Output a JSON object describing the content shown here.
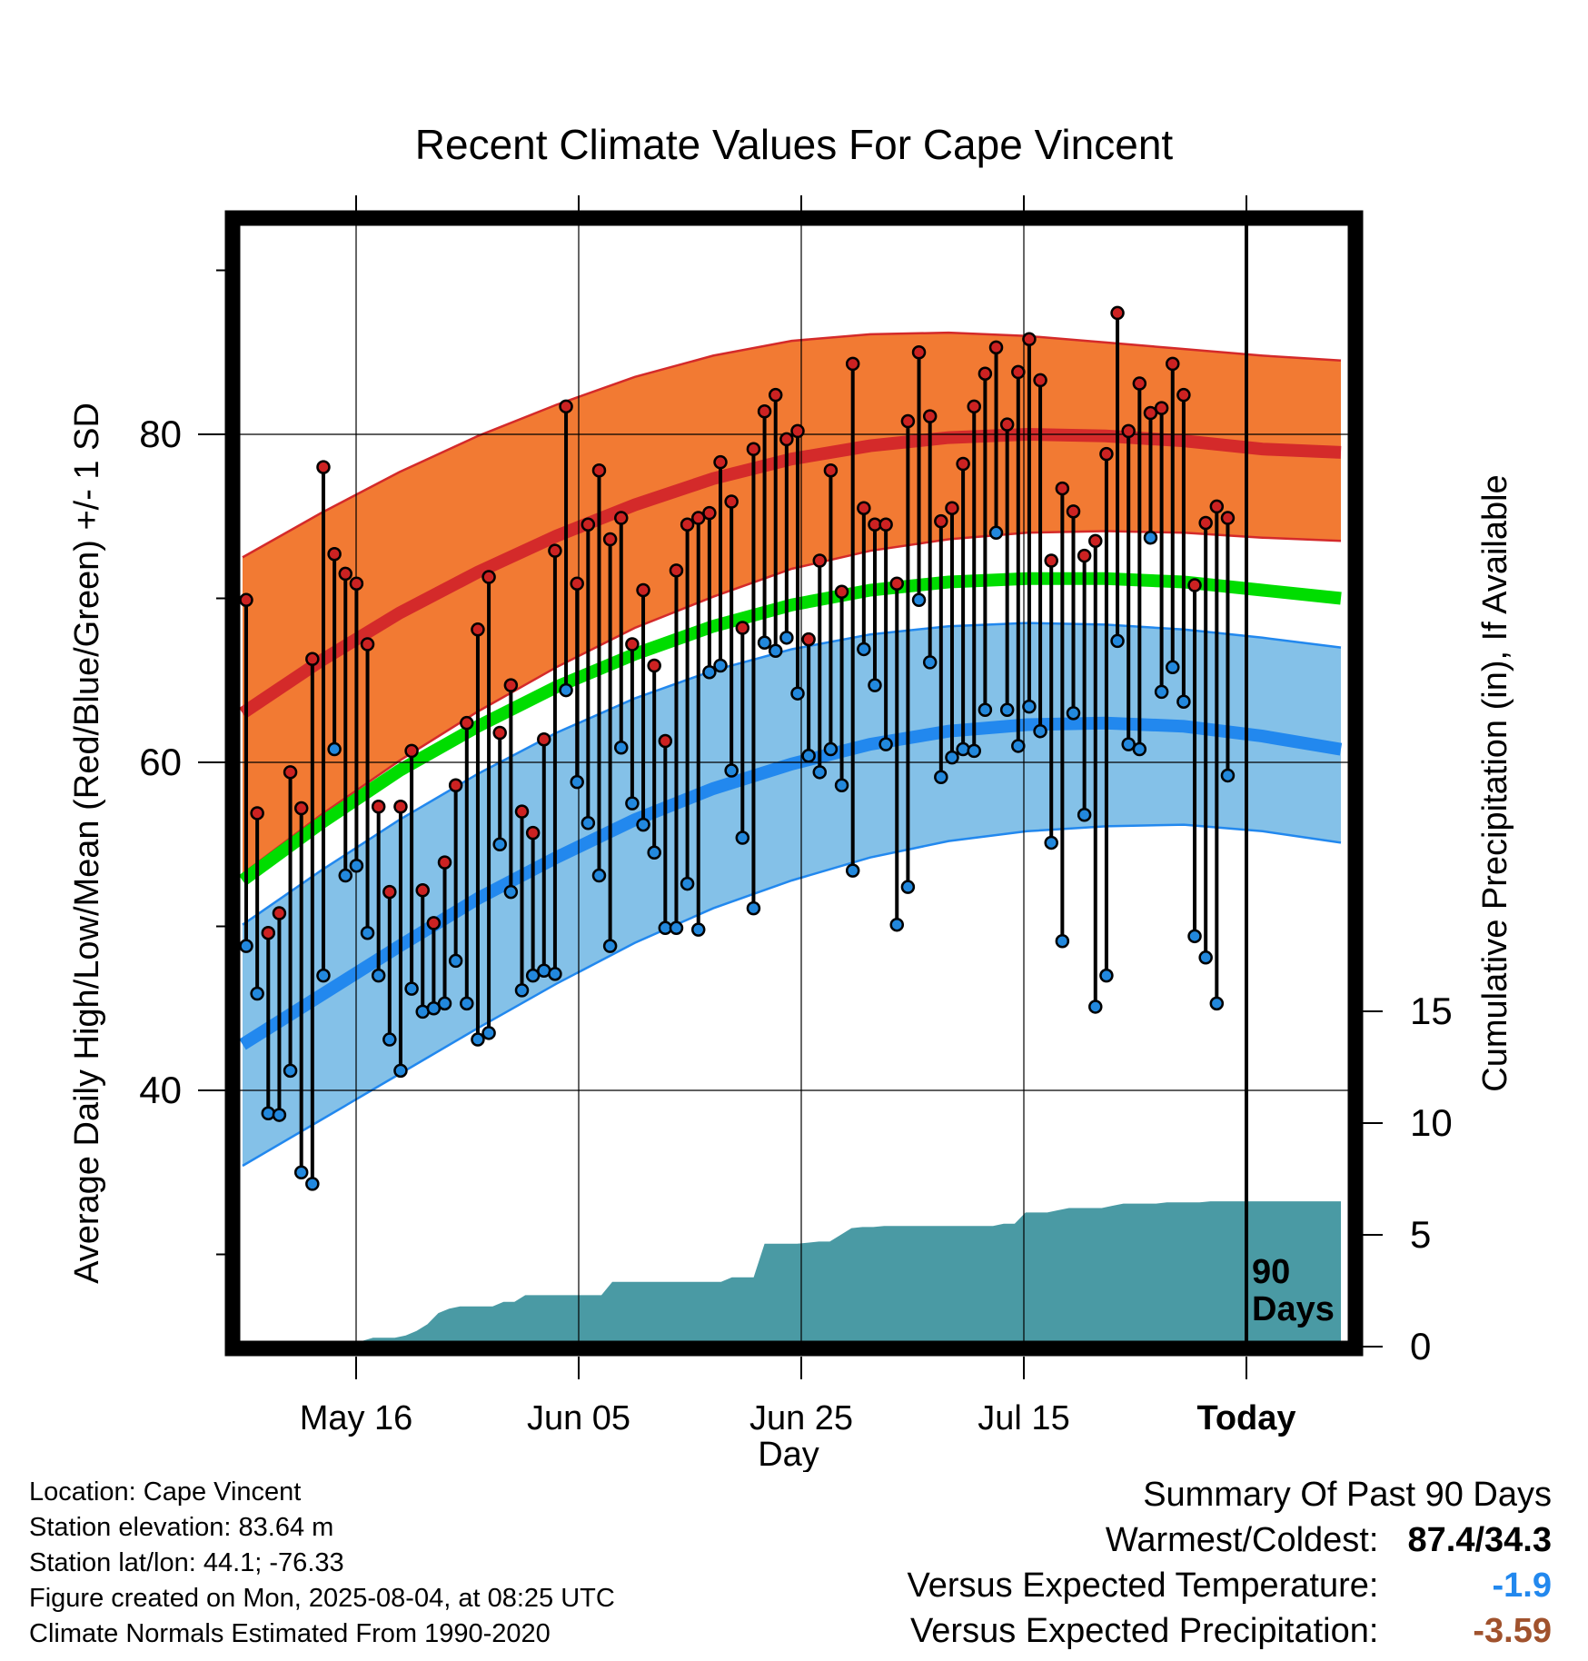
{
  "chart_data": {
    "type": "line",
    "title": "Recent Climate Values For Cape Vincent",
    "xlabel": "Day",
    "ylabel": "Average Daily High/Low/Mean (Red/Blue/Green) +/- 1 SD",
    "y2label": "Cumulative Precipitation (in), If Available",
    "xlim_days": [
      -102,
      9
    ],
    "ylim": [
      24,
      93
    ],
    "y2lim": [
      0,
      43
    ],
    "x_ticks": [
      {
        "day": -80,
        "label": "May 16"
      },
      {
        "day": -60,
        "label": "Jun 05"
      },
      {
        "day": -40,
        "label": "Jun 25"
      },
      {
        "day": -20,
        "label": "Jul 15"
      },
      {
        "day": 0,
        "label": "Today"
      }
    ],
    "y_ticks": [
      40,
      60,
      80
    ],
    "y2_ticks": [
      0,
      5,
      10,
      15
    ],
    "grid": true,
    "today_annotation": "90\nDays",
    "series": [
      {
        "name": "Daily High",
        "color": "#cc2222",
        "values": [
          69.9,
          56.9,
          49.6,
          50.8,
          59.4,
          57.2,
          66.3,
          78.0,
          72.7,
          71.5,
          70.9,
          67.2,
          57.3,
          52.1,
          57.3,
          60.7,
          52.2,
          50.2,
          53.9,
          58.6,
          62.4,
          68.1,
          71.3,
          61.8,
          64.7,
          57.0,
          55.7,
          61.4,
          72.9,
          81.7,
          70.9,
          74.5,
          77.8,
          73.6,
          74.9,
          67.2,
          70.5,
          65.9,
          61.3,
          71.7,
          74.5,
          74.9,
          75.2,
          78.3,
          75.9,
          68.2,
          79.1,
          81.4,
          82.4,
          79.7,
          80.2,
          67.5,
          72.3,
          77.8,
          70.4,
          84.3,
          75.5,
          74.5,
          74.5,
          70.9,
          80.8,
          85.0,
          81.1,
          74.7,
          75.5,
          78.2,
          81.7,
          83.7,
          85.3,
          80.6,
          83.8,
          85.8,
          83.3,
          72.3,
          76.7,
          75.3,
          72.6,
          73.5,
          78.8,
          87.4,
          80.2,
          83.1,
          81.3,
          81.6,
          84.3,
          82.4,
          70.8,
          74.6,
          75.6,
          74.9
        ]
      },
      {
        "name": "Daily Low",
        "color": "#2288dd",
        "values": [
          48.8,
          45.9,
          38.6,
          38.5,
          41.2,
          35.0,
          34.3,
          47.0,
          60.8,
          53.1,
          53.7,
          49.6,
          47.0,
          43.1,
          41.2,
          46.2,
          44.8,
          45.0,
          45.3,
          47.9,
          45.3,
          43.1,
          43.5,
          55.0,
          52.1,
          46.1,
          47.0,
          47.3,
          47.1,
          64.4,
          58.8,
          56.3,
          53.1,
          48.8,
          60.9,
          57.5,
          56.2,
          54.5,
          49.9,
          49.9,
          52.6,
          49.8,
          65.5,
          65.9,
          59.5,
          55.4,
          51.1,
          67.3,
          66.8,
          67.6,
          64.2,
          60.4,
          59.4,
          60.8,
          58.6,
          53.4,
          66.9,
          64.7,
          61.1,
          50.1,
          52.4,
          69.9,
          66.1,
          59.1,
          60.3,
          60.8,
          60.7,
          63.2,
          74.0,
          63.2,
          61.0,
          63.4,
          61.9,
          55.1,
          49.1,
          63.0,
          56.8,
          45.1,
          47.0,
          67.4,
          61.1,
          60.8,
          73.7,
          64.3,
          65.8,
          63.7,
          49.4,
          48.1,
          45.3,
          59.2
        ]
      },
      {
        "name": "Normal High",
        "color": "#d42a2a",
        "values": [
          63.0,
          66.2,
          69.1,
          71.6,
          73.8,
          75.7,
          77.3,
          78.5,
          79.3,
          79.8,
          80.0,
          79.9,
          79.6,
          79.1,
          78.9
        ]
      },
      {
        "name": "Normal High +1 SD",
        "color": "#f27a33",
        "values": [
          72.5,
          75.2,
          77.7,
          79.9,
          81.8,
          83.5,
          84.8,
          85.7,
          86.1,
          86.2,
          86.0,
          85.6,
          85.2,
          84.8,
          84.5
        ]
      },
      {
        "name": "Normal High -1 SD",
        "color": "#f27a33",
        "values": [
          53.2,
          56.8,
          60.1,
          63.1,
          65.8,
          68.2,
          70.1,
          71.8,
          72.9,
          73.6,
          74.0,
          74.1,
          74.0,
          73.7,
          73.5
        ]
      },
      {
        "name": "Normal Mean",
        "color": "#00dd00",
        "values": [
          52.8,
          56.3,
          59.5,
          62.2,
          64.6,
          66.6,
          68.3,
          69.6,
          70.5,
          71.0,
          71.2,
          71.2,
          71.0,
          70.5,
          70.0
        ]
      },
      {
        "name": "Normal Low",
        "color": "#2288ee",
        "values": [
          42.8,
          45.8,
          48.8,
          51.7,
          54.2,
          56.5,
          58.4,
          59.9,
          61.1,
          61.9,
          62.3,
          62.4,
          62.2,
          61.6,
          60.8
        ]
      },
      {
        "name": "Normal Low +1 SD",
        "color": "#2288ee",
        "values": [
          50.1,
          53.4,
          56.5,
          59.3,
          61.8,
          63.9,
          65.6,
          66.9,
          67.8,
          68.3,
          68.5,
          68.4,
          68.1,
          67.6,
          67.0
        ]
      },
      {
        "name": "Normal Low -1 SD",
        "color": "#2288ee",
        "values": [
          35.4,
          38.2,
          41.0,
          43.8,
          46.5,
          49.0,
          51.1,
          52.8,
          54.2,
          55.2,
          55.8,
          56.1,
          56.2,
          55.8,
          55.1
        ]
      },
      {
        "name": "Cumulative Precipitation",
        "color": "#4a9aa4",
        "values": [
          0.0,
          0.0,
          0.0,
          0.0,
          0.0,
          0.0,
          0.0,
          0.0,
          0.0,
          0.0,
          0.0,
          0.25,
          0.4,
          0.4,
          0.4,
          0.5,
          0.7,
          1.0,
          1.5,
          1.7,
          1.8,
          1.8,
          1.8,
          1.8,
          2.0,
          2.0,
          2.3,
          2.3,
          2.3,
          2.3,
          2.3,
          2.3,
          2.3,
          2.3,
          2.9,
          2.9,
          2.9,
          2.9,
          2.9,
          2.9,
          2.9,
          2.9,
          2.9,
          2.9,
          2.9,
          3.1,
          3.1,
          3.1,
          4.6,
          4.6,
          4.6,
          4.6,
          4.65,
          4.7,
          4.7,
          5.0,
          5.3,
          5.35,
          5.35,
          5.4,
          5.4,
          5.4,
          5.4,
          5.4,
          5.4,
          5.4,
          5.4,
          5.4,
          5.4,
          5.4,
          5.5,
          5.5,
          6.0,
          6.0,
          6.0,
          6.1,
          6.2,
          6.2,
          6.2,
          6.2,
          6.3,
          6.4,
          6.4,
          6.4,
          6.4,
          6.45,
          6.45,
          6.45,
          6.45,
          6.5,
          6.5,
          6.5,
          6.5,
          6.5,
          6.5,
          6.5,
          6.5,
          6.5,
          6.5,
          6.5,
          6.5,
          6.5
        ]
      }
    ]
  },
  "info": {
    "location": "Location: Cape Vincent",
    "elevation": "Station elevation: 83.64 m",
    "latlon": "Station lat/lon: 44.1; -76.33",
    "created": "Figure created on Mon, 2025-08-04, at 08:25 UTC",
    "normals": "Climate Normals Estimated From 1990-2020"
  },
  "summary": {
    "title": "Summary Of Past 90 Days",
    "warmest_label": "Warmest/Coldest:",
    "warmest_value": "87.4/34.3",
    "temp_label": "Versus Expected Temperature:",
    "temp_value": "-1.9",
    "temp_color": "#2288ee",
    "precip_label": "Versus Expected Precipitation:",
    "precip_value": "-3.59",
    "precip_color": "#a0522d"
  }
}
